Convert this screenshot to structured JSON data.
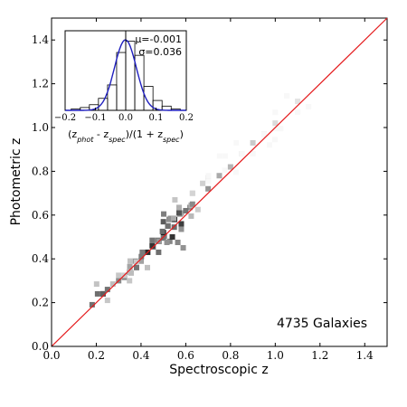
{
  "chart_data": [
    {
      "type": "heatmap",
      "xlabel": "Spectroscopic z",
      "ylabel": "Photometric z",
      "xlim": [
        0.0,
        1.5
      ],
      "ylim": [
        0.0,
        1.5
      ],
      "x_ticks": [
        "0.0",
        "0.2",
        "0.4",
        "0.6",
        "0.8",
        "1.0",
        "1.2",
        "1.4"
      ],
      "y_ticks": [
        "0.0",
        "0.2",
        "0.4",
        "0.6",
        "0.8",
        "1.0",
        "1.2",
        "1.4"
      ],
      "reference_line": {
        "x": [
          0.0,
          1.5
        ],
        "y": [
          0.0,
          1.5
        ],
        "color": "#e41a1c"
      },
      "annotation": "4735 Galaxies",
      "grid": false,
      "density_points": [
        {
          "x": 0.23,
          "y": 0.24,
          "w": 1.0
        },
        {
          "x": 0.35,
          "y": 0.34,
          "w": 0.8
        },
        {
          "x": 0.4,
          "y": 0.39,
          "w": 0.7
        },
        {
          "x": 0.43,
          "y": 0.43,
          "w": 0.95
        },
        {
          "x": 0.45,
          "y": 0.46,
          "w": 0.9
        },
        {
          "x": 0.48,
          "y": 0.48,
          "w": 0.85
        },
        {
          "x": 0.5,
          "y": 0.52,
          "w": 1.0
        },
        {
          "x": 0.52,
          "y": 0.55,
          "w": 0.95
        },
        {
          "x": 0.54,
          "y": 0.5,
          "w": 0.9
        },
        {
          "x": 0.55,
          "y": 0.58,
          "w": 0.9
        },
        {
          "x": 0.58,
          "y": 0.56,
          "w": 0.85
        },
        {
          "x": 0.57,
          "y": 0.61,
          "w": 0.75
        },
        {
          "x": 0.6,
          "y": 0.62,
          "w": 0.6
        },
        {
          "x": 0.63,
          "y": 0.65,
          "w": 0.5
        },
        {
          "x": 0.7,
          "y": 0.72,
          "w": 0.45
        },
        {
          "x": 0.75,
          "y": 0.78,
          "w": 0.35
        },
        {
          "x": 0.8,
          "y": 0.82,
          "w": 0.3
        },
        {
          "x": 0.85,
          "y": 0.88,
          "w": 0.25
        },
        {
          "x": 0.9,
          "y": 0.93,
          "w": 0.2
        },
        {
          "x": 0.95,
          "y": 0.97,
          "w": 0.15
        },
        {
          "x": 1.0,
          "y": 1.02,
          "w": 0.12
        },
        {
          "x": 1.1,
          "y": 1.12,
          "w": 0.08
        },
        {
          "x": 0.3,
          "y": 0.3,
          "w": 0.5
        },
        {
          "x": 0.38,
          "y": 0.36,
          "w": 0.6
        },
        {
          "x": 0.25,
          "y": 0.26,
          "w": 0.6
        }
      ]
    },
    {
      "type": "bar",
      "role": "inset-histogram",
      "xlabel": "(z_phot - z_spec)/(1 + z_spec)",
      "xlabel_parts": {
        "open": "(z",
        "sub1": "phot",
        "mid": " - z",
        "sub2": "spec",
        "mid2": ")/(1 + z",
        "sub3": "spec",
        "close": ")"
      },
      "xlim": [
        -0.2,
        0.2
      ],
      "x_ticks": [
        "−0.2",
        "−0.1",
        "0.0",
        "0.1",
        "0.2"
      ],
      "bin_edges": [
        -0.18,
        -0.15,
        -0.12,
        -0.09,
        -0.06,
        -0.03,
        0.0,
        0.03,
        0.06,
        0.09,
        0.12,
        0.15,
        0.18
      ],
      "values": [
        0.02,
        0.04,
        0.08,
        0.17,
        0.36,
        0.82,
        0.98,
        0.78,
        0.34,
        0.14,
        0.06,
        0.02
      ],
      "fit_mu": -0.001,
      "fit_sigma": 0.036,
      "stats": {
        "mu_label": "μ=-0.001",
        "sigma_label": "σ=0.036"
      },
      "fit_color": "#1f1fbf",
      "mean_line_x": 0.0
    }
  ]
}
